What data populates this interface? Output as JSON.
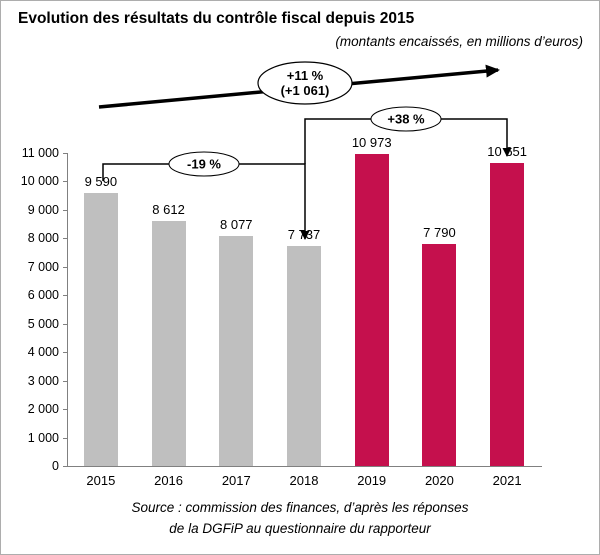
{
  "header": {
    "title": "Evolution des résultats du contrôle fiscal depuis 2015",
    "subtitle": "(montants encaissés, en millions d’euros)"
  },
  "chart_data": {
    "type": "bar",
    "title": "Evolution des résultats du contrôle fiscal depuis 2015",
    "subtitle": "(montants encaissés, en millions d’euros)",
    "unit": "millions d'euros",
    "categories": [
      "2015",
      "2016",
      "2017",
      "2018",
      "2019",
      "2020",
      "2021"
    ],
    "values": [
      9590,
      8612,
      8077,
      7737,
      10973,
      7790,
      10651
    ],
    "value_labels": [
      "9 590",
      "8 612",
      "8 077",
      "7 737",
      "10 973",
      "7 790",
      "10 651"
    ],
    "bar_colors": [
      "#BFBFBF",
      "#BFBFBF",
      "#BFBFBF",
      "#BFBFBF",
      "#C5104D",
      "#C5104D",
      "#C5104D"
    ],
    "xlabel": "",
    "ylabel": "",
    "ylim": [
      0,
      11000
    ],
    "ytick_interval": 1000,
    "ytick_labels": [
      "0",
      "1 000",
      "2 000",
      "3 000",
      "4 000",
      "5 000",
      "6 000",
      "7 000",
      "8 000",
      "9 000",
      "10 000",
      "11 000"
    ],
    "grid": false,
    "annotations": [
      {
        "type": "bracket-arrow",
        "label": "-19 %",
        "from": "2015",
        "to": "2018"
      },
      {
        "type": "bracket-arrow",
        "label": "+38 %",
        "from": "2018",
        "to": "2021"
      },
      {
        "type": "trend-arrow",
        "label_line1": "+11 %",
        "label_line2": "(+1 061)",
        "from": "2015",
        "to": "2021"
      }
    ],
    "colors": {
      "past_bars": "#BFBFBF",
      "recent_bars": "#C5104D",
      "annotation": "#000000"
    }
  },
  "footer": {
    "source_line1": "Source : commission des finances, d’après les réponses",
    "source_line2": "de la DGFiP au questionnaire du rapporteur"
  }
}
